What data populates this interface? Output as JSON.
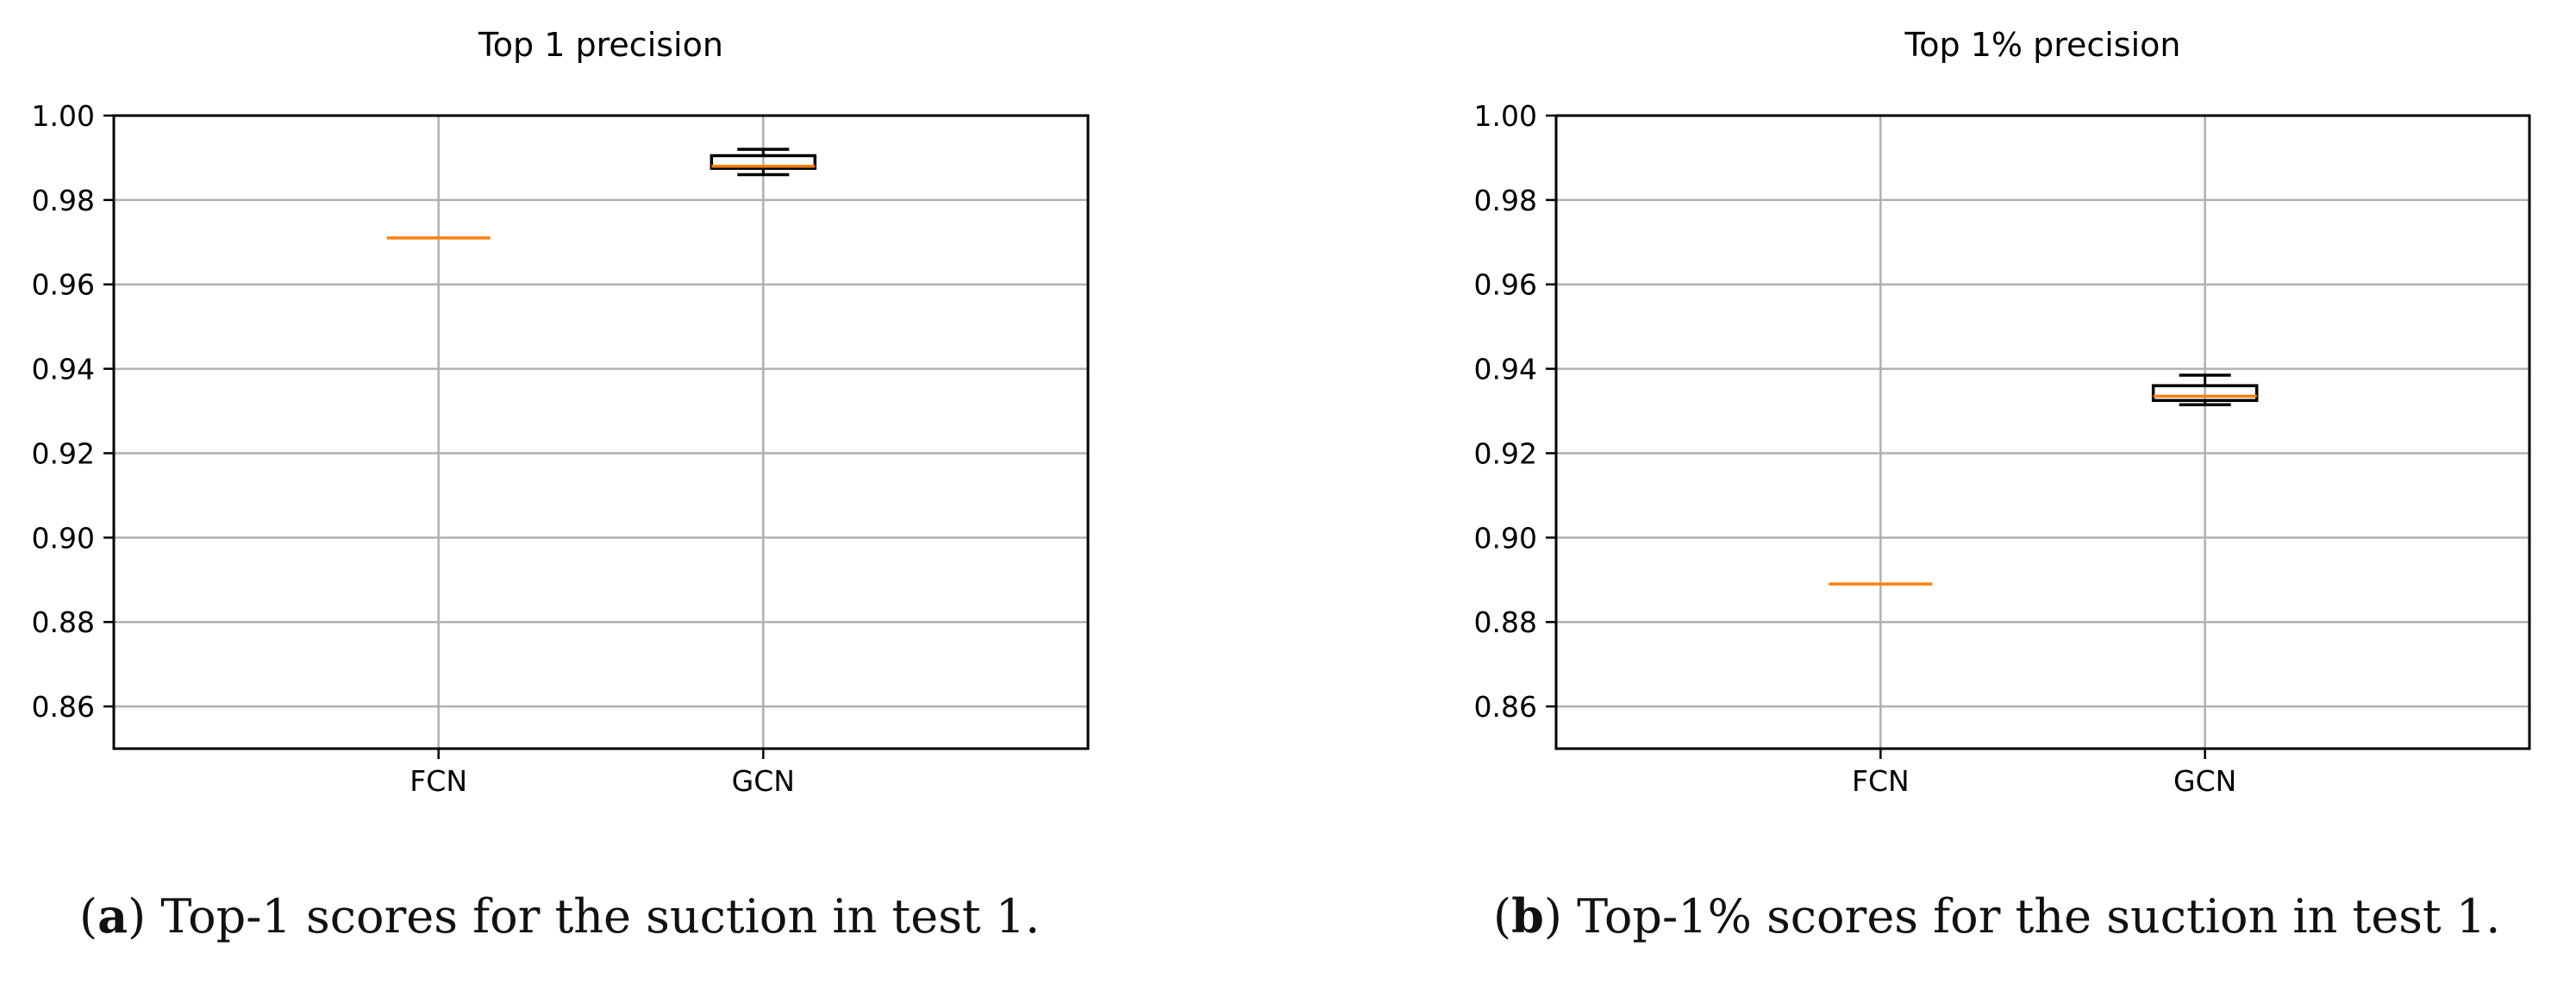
{
  "chart_data": [
    {
      "type": "box",
      "title": "Top 1 precision",
      "categories": [
        "FCN",
        "GCN"
      ],
      "ylim": [
        0.85,
        1.0
      ],
      "yticks": [
        "0.86",
        "0.88",
        "0.90",
        "0.92",
        "0.94",
        "0.96",
        "0.98",
        "1.00"
      ],
      "grid": true,
      "boxes": [
        {
          "label": "FCN",
          "whisker_low": 0.971,
          "q1": 0.971,
          "median": 0.971,
          "q3": 0.971,
          "whisker_high": 0.971
        },
        {
          "label": "GCN",
          "whisker_low": 0.986,
          "q1": 0.9875,
          "median": 0.988,
          "q3": 0.9905,
          "whisker_high": 0.992
        }
      ],
      "caption": {
        "label": "a",
        "text": " Top-1 scores for the suction in test 1."
      }
    },
    {
      "type": "box",
      "title": "Top 1% precision",
      "categories": [
        "FCN",
        "GCN"
      ],
      "ylim": [
        0.85,
        1.0
      ],
      "yticks": [
        "0.86",
        "0.88",
        "0.90",
        "0.92",
        "0.94",
        "0.96",
        "0.98",
        "1.00"
      ],
      "grid": true,
      "boxes": [
        {
          "label": "FCN",
          "whisker_low": 0.889,
          "q1": 0.889,
          "median": 0.889,
          "q3": 0.889,
          "whisker_high": 0.889
        },
        {
          "label": "GCN",
          "whisker_low": 0.9315,
          "q1": 0.9325,
          "median": 0.9335,
          "q3": 0.936,
          "whisker_high": 0.9385
        }
      ],
      "caption": {
        "label": "b",
        "text": " Top-1% scores for the suction in test 1."
      }
    }
  ],
  "colors": {
    "median": "#ff7f0e",
    "box": "#000000",
    "grid": "#b0b0b0",
    "axes": "#000000"
  }
}
